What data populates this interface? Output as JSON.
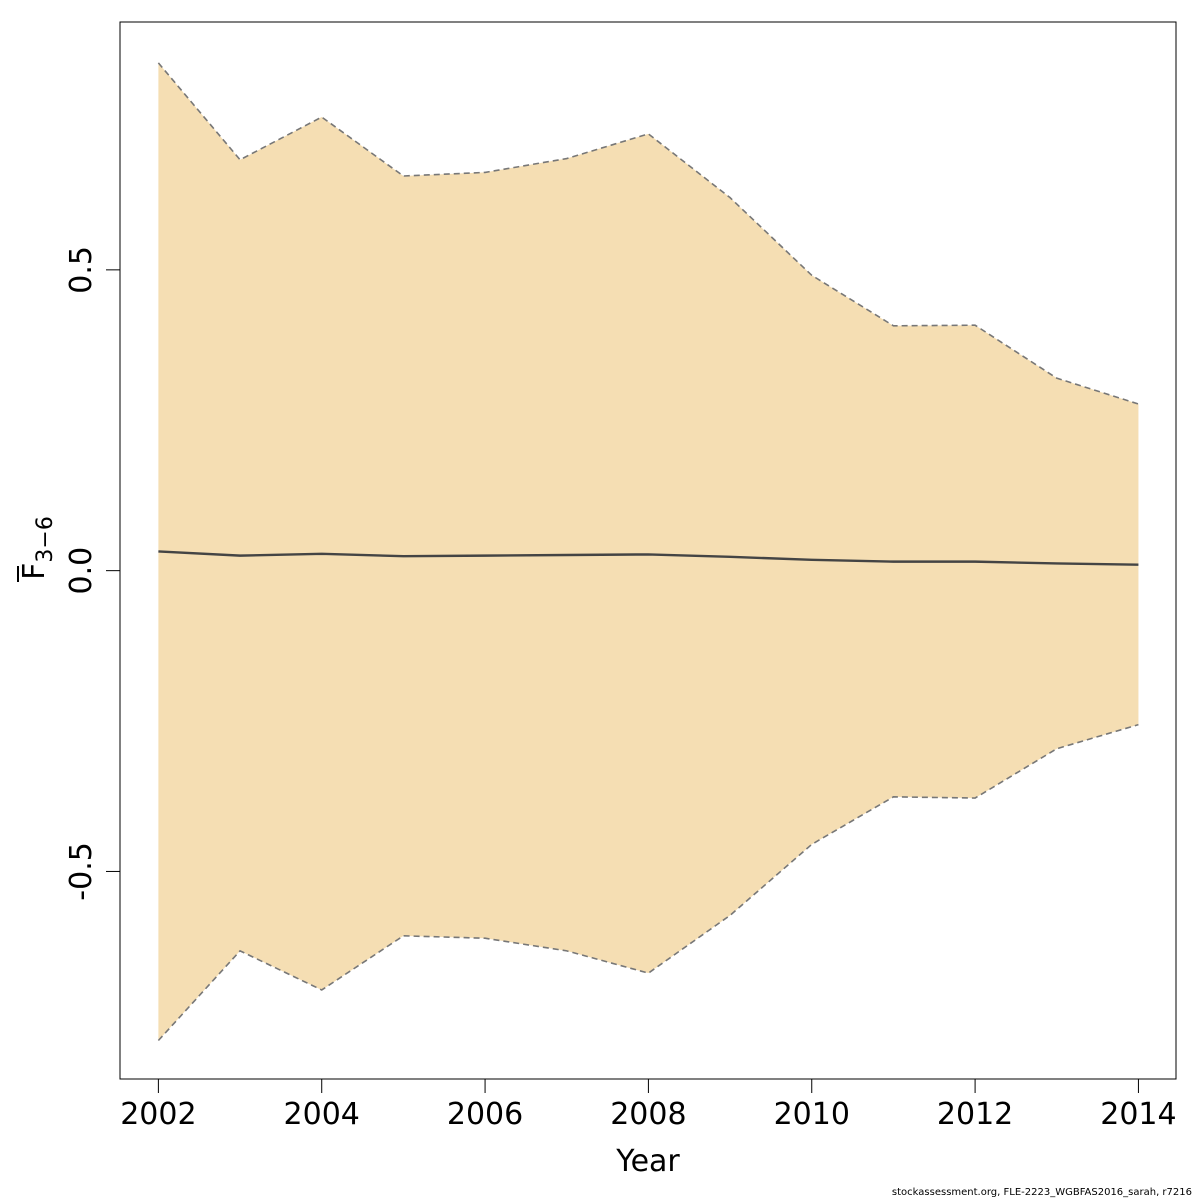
{
  "chart_data": {
    "type": "line",
    "title": "",
    "xlabel": "Year",
    "ylabel": {
      "main": "F",
      "subscript": "3−6",
      "overline": true
    },
    "x": [
      2002,
      2003,
      2004,
      2005,
      2006,
      2007,
      2008,
      2009,
      2010,
      2011,
      2012,
      2013,
      2014
    ],
    "series": [
      {
        "role": "estimate",
        "color": "#444444",
        "values": [
          0.032,
          0.025,
          0.028,
          0.024,
          0.025,
          0.026,
          0.027,
          0.023,
          0.018,
          0.015,
          0.015,
          0.012,
          0.01
        ]
      },
      {
        "role": "upper",
        "color": "#777777",
        "style": "dashed",
        "values": [
          0.844,
          0.683,
          0.754,
          0.656,
          0.662,
          0.685,
          0.726,
          0.62,
          0.491,
          0.407,
          0.408,
          0.32,
          0.277
        ]
      },
      {
        "role": "lower",
        "color": "#777777",
        "style": "dashed",
        "values": [
          -0.781,
          -0.632,
          -0.697,
          -0.607,
          -0.611,
          -0.632,
          -0.669,
          -0.573,
          -0.455,
          -0.376,
          -0.378,
          -0.296,
          -0.256
        ]
      }
    ],
    "band_color": "#F5DEB3",
    "xlim": [
      2001.53,
      2014.46
    ],
    "ylim": [
      -0.845,
      0.912
    ],
    "xticks": [
      "2002",
      "2004",
      "2006",
      "2008",
      "2010",
      "2012",
      "2014"
    ],
    "yticks": [
      "-0.5",
      "0.0",
      "0.5"
    ],
    "grid": false,
    "legend": "none"
  },
  "footer": "stockassessment.org, FLE-2223_WGBFAS2016_sarah, r7216"
}
